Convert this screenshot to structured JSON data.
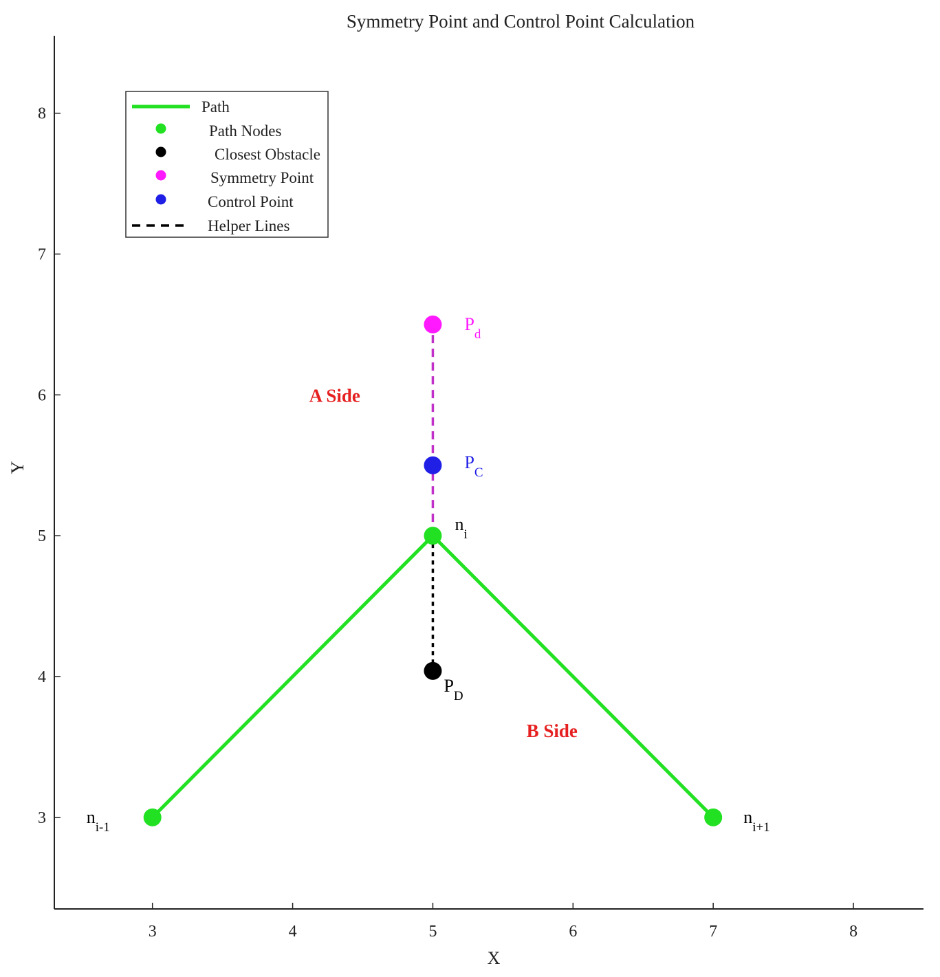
{
  "chart_data": {
    "type": "line",
    "title": "Symmetry Point and Control Point Calculation",
    "xlabel": "X",
    "ylabel": "Y",
    "xlim": [
      2.3,
      8.5
    ],
    "ylim": [
      2.35,
      8.55
    ],
    "xticks": [
      3,
      4,
      5,
      6,
      7,
      8
    ],
    "yticks": [
      3,
      4,
      5,
      6,
      7,
      8
    ],
    "grid": false,
    "legend_position": "top-left",
    "colors": {
      "path": "#22e022",
      "obstacle": "#000000",
      "symmetry": "#ff19ff",
      "control": "#1f1fe6",
      "helper_purple": "#c030c8",
      "side_label": "#e62020"
    },
    "series": [
      {
        "name": "Path",
        "style": "solid-line",
        "x": [
          3,
          5,
          7
        ],
        "y": [
          3,
          5,
          3
        ]
      },
      {
        "name": "Path Nodes",
        "style": "marker",
        "x": [
          3,
          5,
          7
        ],
        "y": [
          3,
          5,
          3
        ]
      },
      {
        "name": "Closest Obstacle",
        "style": "marker",
        "x": [
          5
        ],
        "y": [
          4.04
        ]
      },
      {
        "name": "Symmetry Point",
        "style": "marker",
        "x": [
          5
        ],
        "y": [
          6.5
        ]
      },
      {
        "name": "Control Point",
        "style": "marker",
        "x": [
          5
        ],
        "y": [
          5.5
        ]
      },
      {
        "name": "Helper Lines",
        "style": "dashed-line",
        "segments": [
          {
            "x": [
              5,
              5
            ],
            "y": [
              5,
              6.5
            ],
            "color": "helper_purple"
          },
          {
            "x": [
              5,
              5
            ],
            "y": [
              5,
              4.04
            ],
            "color": "obstacle"
          }
        ]
      }
    ],
    "annotations": [
      {
        "id": "pd",
        "base": "P",
        "sub": "d",
        "x": 5,
        "y": 6.5,
        "color": "symmetry"
      },
      {
        "id": "pc",
        "base": "P",
        "sub": "C",
        "x": 5,
        "y": 5.5,
        "color": "control"
      },
      {
        "id": "ni",
        "base": "n",
        "sub": "i",
        "x": 5,
        "y": 5,
        "color": "obstacle"
      },
      {
        "id": "pD",
        "base": "P",
        "sub": "D",
        "x": 5,
        "y": 4.04,
        "color": "obstacle"
      },
      {
        "id": "nim1",
        "base": "n",
        "sub": "i-1",
        "x": 3,
        "y": 3,
        "color": "obstacle"
      },
      {
        "id": "nip1",
        "base": "n",
        "sub": "i+1",
        "x": 7,
        "y": 3,
        "color": "obstacle"
      }
    ],
    "region_labels": [
      {
        "id": "a-side",
        "text": "A Side",
        "x": 4.3,
        "y": 6.0
      },
      {
        "id": "b-side",
        "text": "B Side",
        "x": 5.85,
        "y": 3.62
      }
    ]
  }
}
